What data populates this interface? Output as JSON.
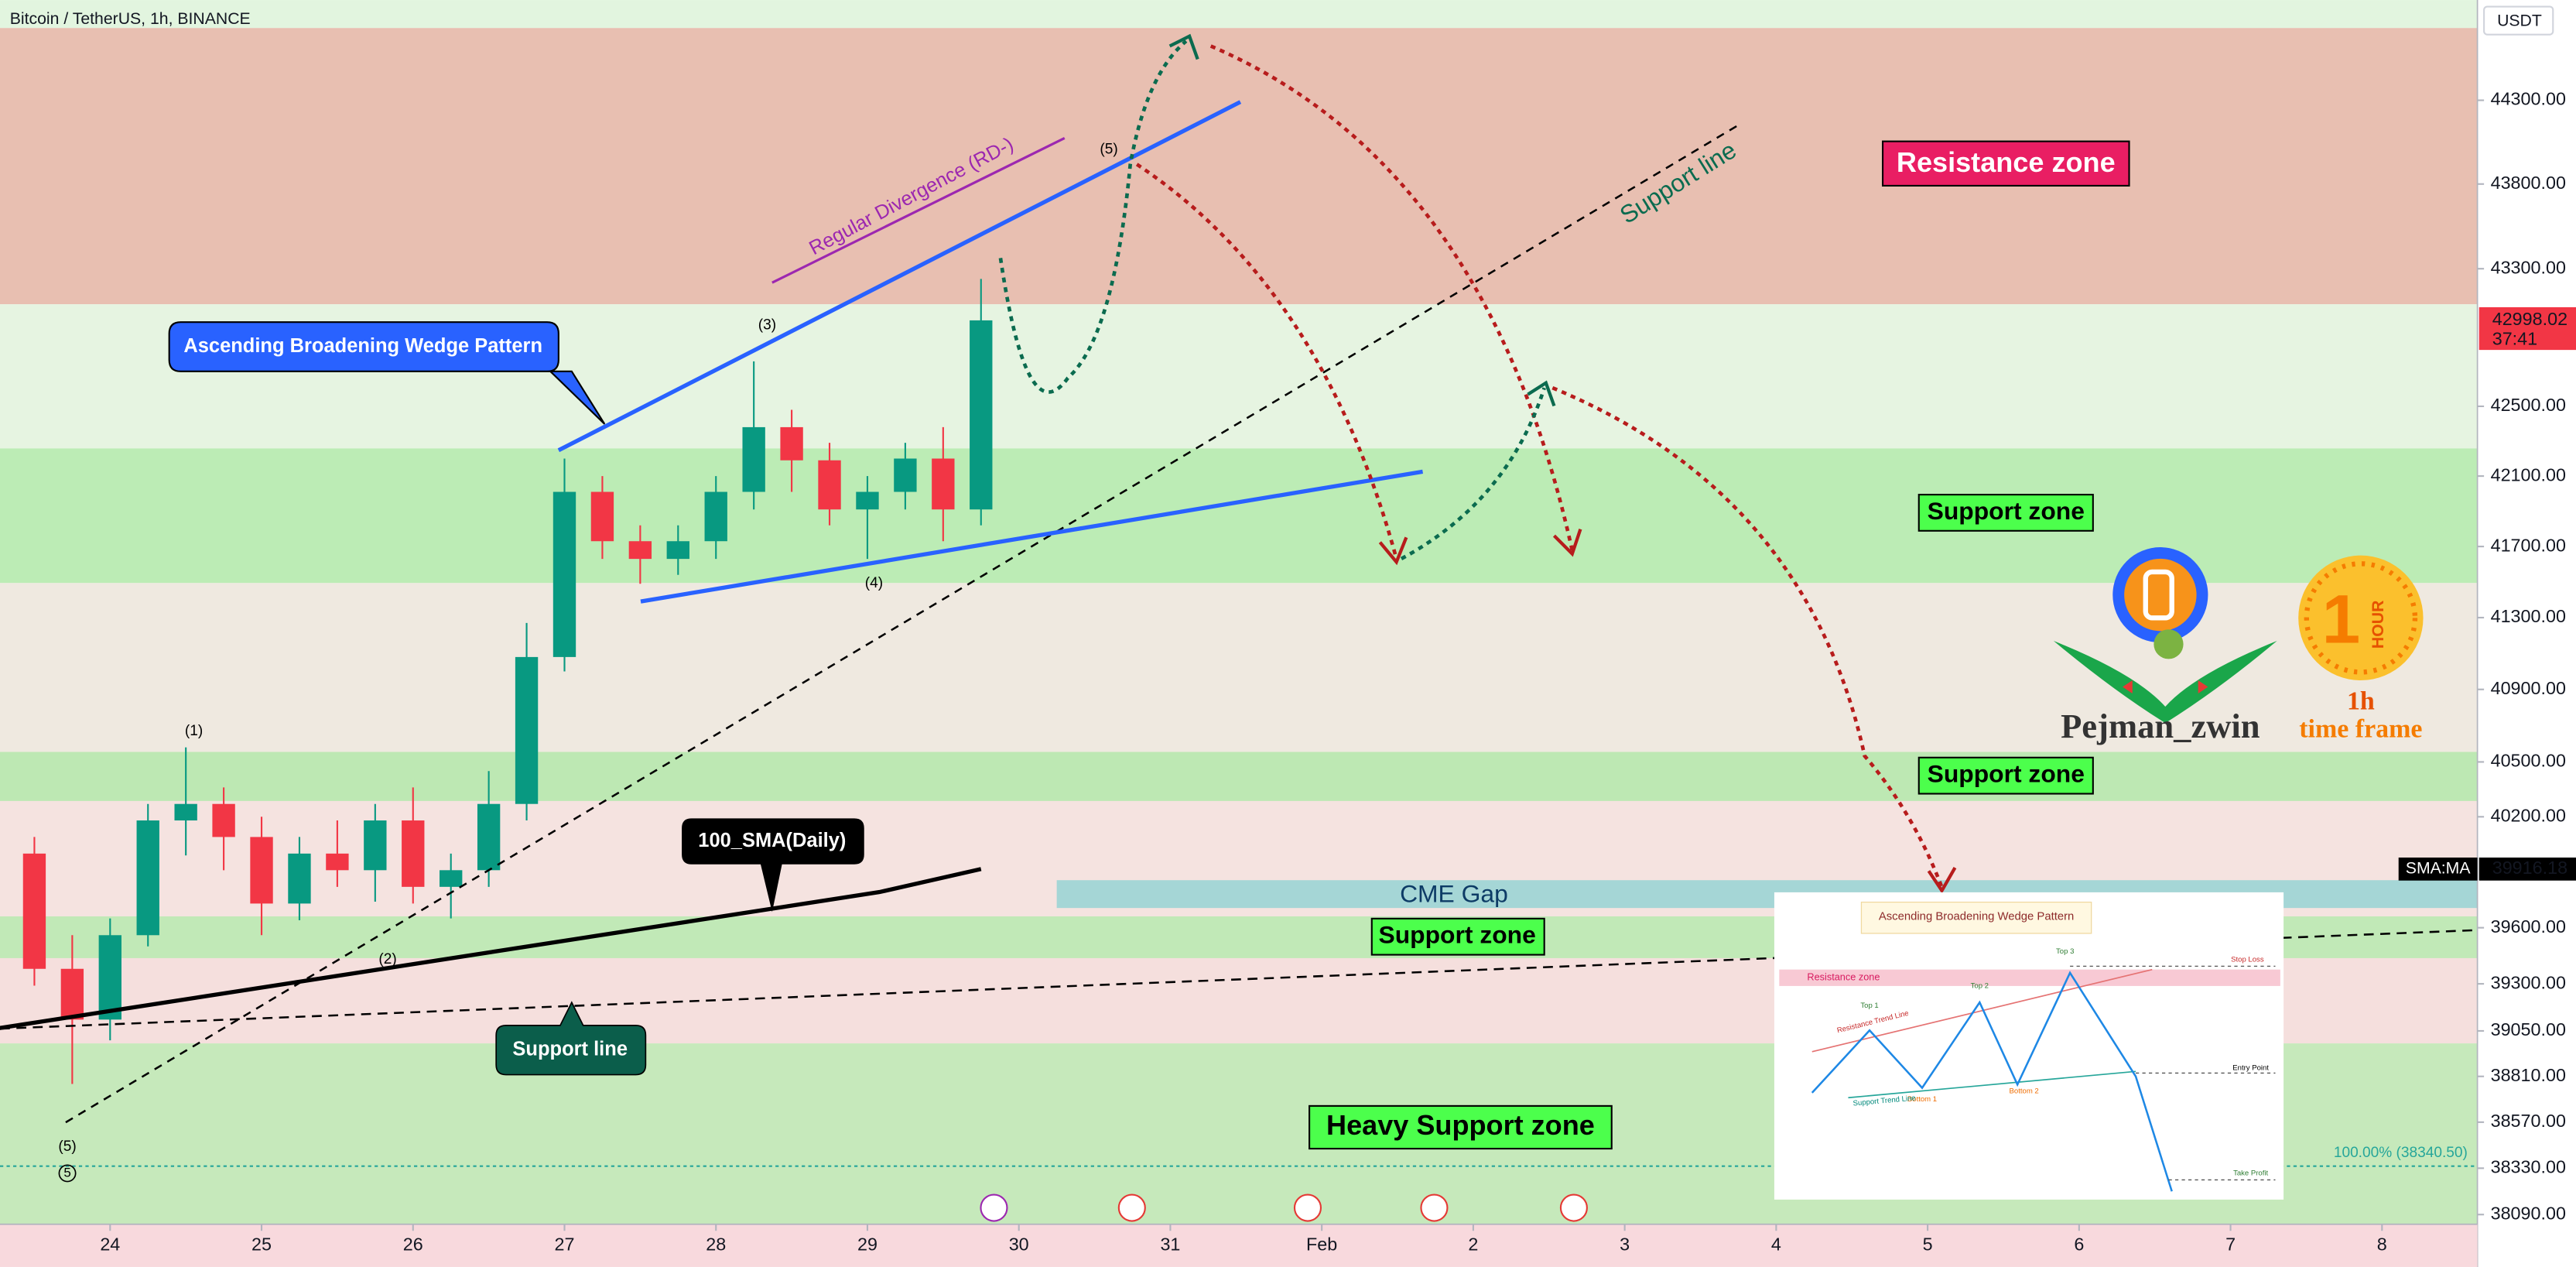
{
  "chart_data": {
    "type": "candlestick",
    "title": "Bitcoin / TetherUS, 1h, BINANCE",
    "y_unit": "USDT",
    "x": [
      -0.5,
      -0.25,
      0,
      0.25,
      0.5,
      0.75,
      1,
      1.25,
      1.5,
      1.75,
      2,
      2.25,
      2.5,
      2.75,
      3,
      3.25,
      3.5,
      3.75,
      4,
      4.25,
      4.5,
      4.75,
      5,
      5.25,
      5.5,
      5.75
    ],
    "open": [
      40000,
      39380,
      39110,
      39560,
      40180,
      40270,
      40090,
      39730,
      40000,
      39910,
      40180,
      39820,
      39910,
      40270,
      41080,
      42010,
      41730,
      41630,
      41730,
      42010,
      42380,
      42190,
      41910,
      42010,
      42200,
      41910
    ],
    "high": [
      40090,
      39560,
      39650,
      40270,
      40580,
      40360,
      40200,
      40090,
      40180,
      40270,
      40360,
      40000,
      40450,
      41270,
      42200,
      42100,
      41820,
      41820,
      42100,
      42760,
      42480,
      42290,
      42100,
      42290,
      42380,
      43240
    ],
    "low": [
      39290,
      38770,
      39000,
      39500,
      39990,
      39910,
      39560,
      39640,
      39820,
      39740,
      39730,
      39650,
      39820,
      40180,
      41000,
      41630,
      41490,
      41540,
      41630,
      41910,
      42010,
      41820,
      41630,
      41910,
      41730,
      41820
    ],
    "close": [
      39380,
      39110,
      39560,
      40180,
      40270,
      40090,
      39730,
      40000,
      39910,
      40180,
      39820,
      39910,
      40270,
      41080,
      42010,
      41730,
      41630,
      41730,
      42010,
      42380,
      42190,
      41910,
      42010,
      42200,
      41910,
      42998.02
    ],
    "colors": {
      "up": "#089981",
      "down": "#f23645"
    },
    "xlim": [
      -0.727,
      15.63
    ],
    "xticks": [
      {
        "value": 0,
        "label": "24"
      },
      {
        "value": 1,
        "label": "25"
      },
      {
        "value": 2,
        "label": "26"
      },
      {
        "value": 3,
        "label": "27"
      },
      {
        "value": 4,
        "label": "28"
      },
      {
        "value": 5,
        "label": "29"
      },
      {
        "value": 6,
        "label": "30"
      },
      {
        "value": 7,
        "label": "31"
      },
      {
        "value": 8,
        "label": "Feb"
      },
      {
        "value": 9,
        "label": "2"
      },
      {
        "value": 10,
        "label": "3"
      },
      {
        "value": 11,
        "label": "4"
      },
      {
        "value": 12,
        "label": "5"
      },
      {
        "value": 13,
        "label": "6"
      },
      {
        "value": 14,
        "label": "7"
      },
      {
        "value": 15,
        "label": "8"
      }
    ],
    "ylim": [
      38040,
      44906
    ],
    "log_y": true,
    "yticks": [
      {
        "value": 44300,
        "label": "44300.00"
      },
      {
        "value": 43800,
        "label": "43800.00"
      },
      {
        "value": 43300,
        "label": "43300.00"
      },
      {
        "value": 42500,
        "label": "42500.00"
      },
      {
        "value": 42100,
        "label": "42100.00"
      },
      {
        "value": 41700,
        "label": "41700.00"
      },
      {
        "value": 41300,
        "label": "41300.00"
      },
      {
        "value": 40900,
        "label": "40900.00"
      },
      {
        "value": 40500,
        "label": "40500.00"
      },
      {
        "value": 40200,
        "label": "40200.00"
      },
      {
        "value": 39600,
        "label": "39600.00"
      },
      {
        "value": 39300,
        "label": "39300.00"
      },
      {
        "value": 39050,
        "label": "39050.00"
      },
      {
        "value": 38810,
        "label": "38810.00"
      },
      {
        "value": 38570,
        "label": "38570.00"
      },
      {
        "value": 38330,
        "label": "38330.00"
      },
      {
        "value": 38090,
        "label": "38090.00"
      }
    ],
    "zones": [
      {
        "low": 44736,
        "high": 44906,
        "color": "#e2f5df"
      },
      {
        "low": 43092,
        "high": 44736,
        "color": "#e8bfb1"
      },
      {
        "low": 42258,
        "high": 43092,
        "color": "#e6f4e1"
      },
      {
        "low": 41494,
        "high": 42258,
        "color": "#bcecb5"
      },
      {
        "low": 40555,
        "high": 41494,
        "color": "#efe9e0"
      },
      {
        "low": 40286,
        "high": 40555,
        "color": "#bde8b3"
      },
      {
        "low": 39661,
        "high": 40286,
        "color": "#f5e3e0"
      },
      {
        "low": 39437,
        "high": 39661,
        "color": "#c1e9b7"
      },
      {
        "low": 38984,
        "high": 39437,
        "color": "#f5dfdd"
      },
      {
        "low": 38040,
        "high": 38984,
        "color": "#c6e9bb"
      }
    ],
    "cme_gap": {
      "low": 39706,
      "high": 39856,
      "x_from": 6.25,
      "color": "#a5d6d6"
    },
    "sma": {
      "name": "SMA:MA",
      "x": [
        -0.73,
        5.08,
        5.75
      ],
      "values": [
        39065,
        39792,
        39916.18
      ],
      "value_label": "39916.18",
      "color": "#000000"
    },
    "last_price": {
      "value": 42998.02,
      "label": "42998.02",
      "countdown": "37:41",
      "color": "#f23645"
    },
    "fib_level": {
      "value": 38340.5,
      "label": "100.00% (38340.50)",
      "color": "#26a69a"
    },
    "annotations": {
      "resistance_zone": "Resistance zone",
      "support_zone_1": "Support zone",
      "support_zone_2": "Support zone",
      "support_zone_3": "Support zone",
      "heavy_support_zone": "Heavy Support zone",
      "cme_gap": "CME Gap",
      "support_line_1": "Support line",
      "support_line_2": "Support line",
      "wedge_pattern": "Ascending Broadening Wedge Pattern",
      "sma_callout": "100_SMA(Daily)",
      "divergence": "Regular Divergence (RD-)",
      "waves": [
        "(1)",
        "(2)",
        "(3)",
        "(4)",
        "(5)",
        "(5)",
        "5"
      ],
      "logo_name": "Pejman_zwin",
      "logo_one": "1",
      "logo_hour": "HOUR",
      "logo_1h": "1h",
      "logo_tf": "time frame"
    },
    "inset": {
      "title": "Ascending Broadening Wedge Pattern",
      "resistance": "Resistance zone",
      "top1": "Top 1",
      "top2": "Top 2",
      "top3": "Top 3",
      "stop_loss": "Stop Loss",
      "entry": "Entry Point",
      "take_profit": "Take Profit",
      "bottom1": "Bottom 1",
      "bottom2": "Bottom 2",
      "res_line": "Resistance Trend Line",
      "sup_line": "Support Trend Line"
    }
  }
}
